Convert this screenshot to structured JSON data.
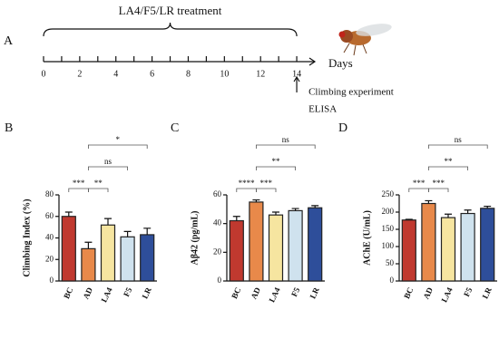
{
  "chart_data": [
    {
      "type": "timeline",
      "label": "A",
      "title": "LA4/F5/LR treatment",
      "xlabel": "Days",
      "xlim": [
        0,
        15
      ],
      "xticks": [
        0,
        2,
        4,
        6,
        8,
        10,
        12,
        14
      ],
      "annotations": [
        "Climbing experiment",
        "ELISA"
      ],
      "annotation_x": 14
    },
    {
      "type": "bar",
      "label": "B",
      "ylabel": "Climbing Index (%)",
      "categories": [
        "BC",
        "AD",
        "LA4",
        "F5",
        "LR"
      ],
      "values": [
        60,
        30,
        52,
        41,
        43
      ],
      "errors": [
        4,
        6,
        6,
        5,
        6
      ],
      "colors": [
        "#c0392f",
        "#e8894a",
        "#f6e5a0",
        "#cfe2ee",
        "#2e4e9a"
      ],
      "ylim": [
        0,
        80
      ],
      "yticks": [
        0,
        20,
        40,
        60,
        80
      ],
      "significance": [
        {
          "from": 0,
          "to": 1,
          "label": "***"
        },
        {
          "from": 1,
          "to": 2,
          "label": "**"
        },
        {
          "from": 1,
          "to": 3,
          "label": "ns"
        },
        {
          "from": 1,
          "to": 4,
          "label": "*"
        }
      ]
    },
    {
      "type": "bar",
      "label": "C",
      "ylabel": "Aβ42 (pg/mL)",
      "categories": [
        "BC",
        "AD",
        "LA4",
        "F5",
        "LR"
      ],
      "values": [
        42,
        55,
        46,
        49,
        51
      ],
      "errors": [
        3,
        1.5,
        2,
        1.5,
        1.5
      ],
      "colors": [
        "#c0392f",
        "#e8894a",
        "#f6e5a0",
        "#cfe2ee",
        "#2e4e9a"
      ],
      "ylim": [
        0,
        60
      ],
      "yticks": [
        0,
        20,
        40,
        60
      ],
      "significance": [
        {
          "from": 0,
          "to": 1,
          "label": "****"
        },
        {
          "from": 1,
          "to": 2,
          "label": "***"
        },
        {
          "from": 1,
          "to": 3,
          "label": "**"
        },
        {
          "from": 1,
          "to": 4,
          "label": "ns"
        }
      ]
    },
    {
      "type": "bar",
      "label": "D",
      "ylabel": "AChE (U/mL)",
      "categories": [
        "BC",
        "AD",
        "LA4",
        "F5",
        "LR"
      ],
      "values": [
        177,
        225,
        184,
        196,
        211
      ],
      "errors": [
        2,
        8,
        10,
        10,
        6
      ],
      "colors": [
        "#c0392f",
        "#e8894a",
        "#f6e5a0",
        "#cfe2ee",
        "#2e4e9a"
      ],
      "ylim": [
        0,
        250
      ],
      "yticks": [
        0,
        50,
        100,
        150,
        200,
        250
      ],
      "significance": [
        {
          "from": 0,
          "to": 1,
          "label": "***"
        },
        {
          "from": 1,
          "to": 2,
          "label": "***"
        },
        {
          "from": 1,
          "to": 3,
          "label": "**"
        },
        {
          "from": 1,
          "to": 4,
          "label": "ns"
        }
      ]
    }
  ]
}
